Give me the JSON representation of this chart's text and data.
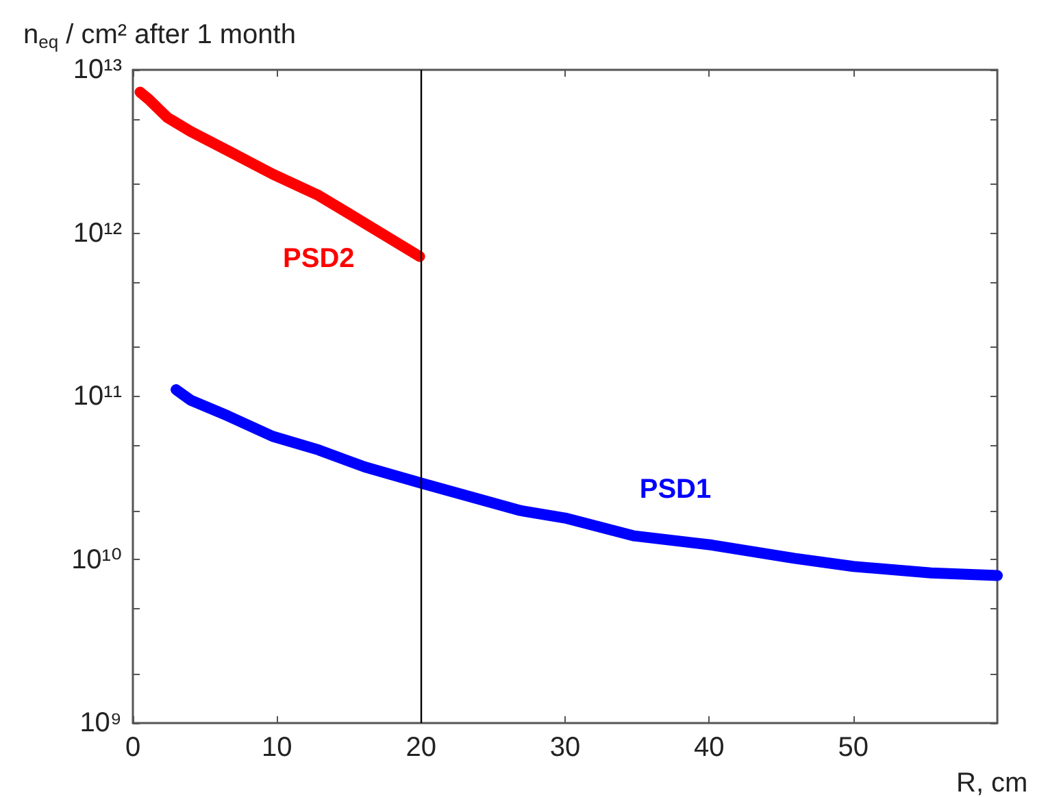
{
  "chart_data": {
    "type": "line",
    "ylabel": "n$_{eq}$ / cm² after 1 month",
    "xlabel": "R, cm",
    "log": "y",
    "grid": false,
    "legend": false,
    "marker": "none",
    "line_style": "solid",
    "xlim": [
      0,
      60
    ],
    "xticks": [
      0,
      10,
      20,
      30,
      40,
      50
    ],
    "ylim": [
      1000000000.0,
      10000000000000.0
    ],
    "yticks": [
      {
        "value": 1000000000.0,
        "label": "10⁹"
      },
      {
        "value": 2000000000.0,
        "label": null
      },
      {
        "value": 5000000000.0,
        "label": null
      },
      {
        "value": 10000000000.0,
        "label": "10¹⁰"
      },
      {
        "value": 20000000000.0,
        "label": null
      },
      {
        "value": 50000000000.0,
        "label": null
      },
      {
        "value": 100000000000.0,
        "label": "10¹¹"
      },
      {
        "value": 200000000000.0,
        "label": null
      },
      {
        "value": 500000000000.0,
        "label": null
      },
      {
        "value": 1000000000000.0,
        "label": "10¹²"
      },
      {
        "value": 2000000000000.0,
        "label": null
      },
      {
        "value": 5000000000000.0,
        "label": null
      },
      {
        "value": 10000000000000.0,
        "label": "10¹³"
      }
    ],
    "ref_lines": [
      {
        "axis": "x",
        "value": 20,
        "color": "#000000",
        "line_style": "solid"
      }
    ],
    "series": [
      {
        "name": "PSD2",
        "color": "#ff0000",
        "x": [
          0.5,
          1.1,
          2.4,
          4.0,
          6.6,
          9.7,
          12.9,
          16.1,
          19.9
        ],
        "values": [
          7300000000000.0,
          6600000000000.0,
          5100000000000.0,
          4200000000000.0,
          3200000000000.0,
          2300000000000.0,
          1700000000000.0,
          1150000000000.0,
          720000000000.0
        ]
      },
      {
        "name": "PSD1",
        "color": "#0000ff",
        "x": [
          3.0,
          4.0,
          6.6,
          9.7,
          12.9,
          16.1,
          20,
          26.9,
          30,
          34.8,
          40.2,
          45.9,
          50,
          55.4,
          60
        ],
        "values": [
          110000000000.0,
          95000000000.0,
          76000000000.0,
          57000000000.0,
          47000000000.0,
          37000000000.0,
          29500000000.0,
          20000000000.0,
          18000000000.0,
          14000000000.0,
          12300000000.0,
          10200000000.0,
          9100000000.0,
          8300000000.0,
          8000000000.0
        ]
      }
    ]
  }
}
